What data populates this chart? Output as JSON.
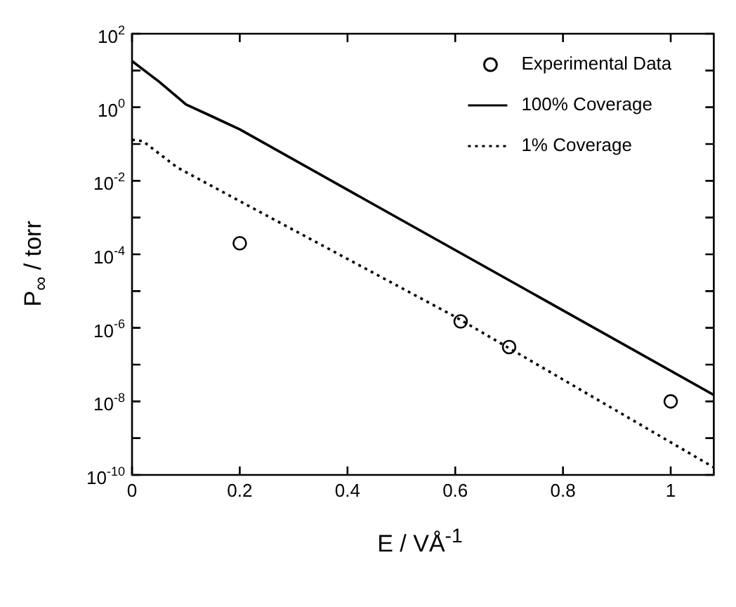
{
  "chart_data": {
    "type": "line",
    "xlabel": "E / VÅ$^{-1}$",
    "ylabel": "P$_{∞}$ / torr",
    "log": "y",
    "grid": false,
    "legend": "top right",
    "xlim": [
      0,
      1.08
    ],
    "xticks": [
      0,
      0.2,
      0.4,
      0.6,
      0.8,
      1
    ],
    "ylim": [
      1e-10,
      100
    ],
    "yticks": [
      {
        "value": 1e-10,
        "label": "10$^{-10}$"
      },
      {
        "value": 1e-09,
        "label": null
      },
      {
        "value": 1e-08,
        "label": "10$^{-8}$"
      },
      {
        "value": 1e-07,
        "label": null
      },
      {
        "value": 1e-06,
        "label": "10$^{-6}$"
      },
      {
        "value": 1e-05,
        "label": null
      },
      {
        "value": 0.0001,
        "label": "10$^{-4}$"
      },
      {
        "value": 0.001,
        "label": null
      },
      {
        "value": 0.01,
        "label": "10$^{-2}$"
      },
      {
        "value": 0.1,
        "label": null
      },
      {
        "value": 1,
        "label": "10$^{0}$"
      },
      {
        "value": 10,
        "label": null
      },
      {
        "value": 100,
        "label": "10$^{2}$"
      }
    ],
    "series": [
      {
        "name": "Experimental Data",
        "type": "scatter",
        "marker": "circle",
        "color": "#000000",
        "x": [
          0.2,
          0.61,
          0.7,
          1.0
        ],
        "values": [
          0.0002,
          1.5e-06,
          3e-07,
          1e-08
        ]
      },
      {
        "name": "100% Coverage",
        "line_style": "solid",
        "marker": "none",
        "color": "#000000",
        "x": [
          0,
          0.05,
          0.1,
          0.15,
          0.2,
          1.08
        ],
        "values": [
          18,
          5,
          1.2,
          0.55,
          0.25,
          1.5e-08
        ]
      },
      {
        "name": "1% Coverage",
        "line_style": "dotted",
        "marker": "none",
        "color": "#000000",
        "x": [
          0,
          0.02,
          0.084,
          0.2,
          0.6,
          1.08
        ],
        "values": [
          0.13,
          0.12,
          0.023,
          0.0028,
          2e-06,
          1.6e-10
        ]
      }
    ]
  }
}
